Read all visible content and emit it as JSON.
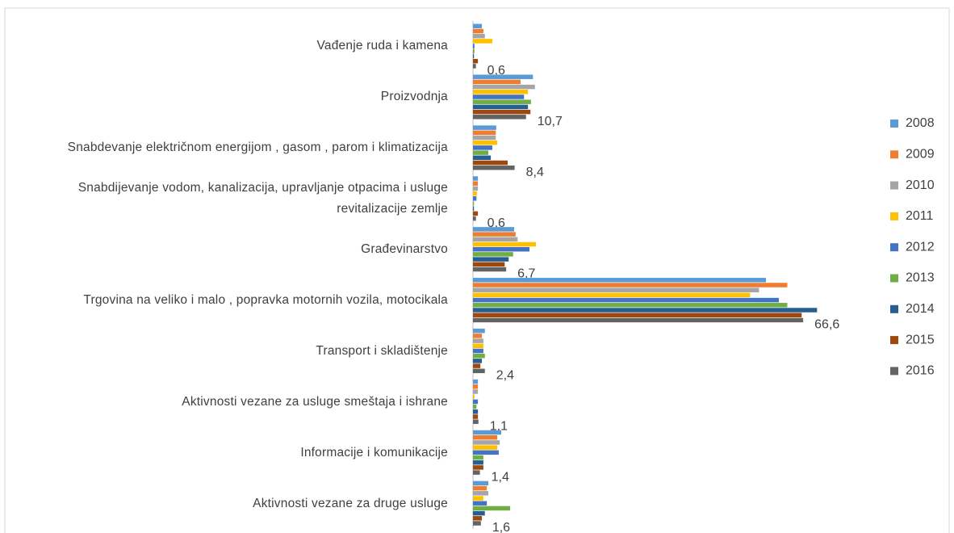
{
  "chart_data": {
    "type": "hbar",
    "categories": [
      "Vađenje ruda i kamena",
      "Proizvodnja",
      "Snabdevanje električnom energijom , gasom , parom i klimatizacija",
      "Snabdijevanje vodom, kanalizacija, upravljanje otpacima i usluge revitalizacije zemlje",
      "Građevinarstvo",
      "Trgovina na veliko i malo , popravka motornih vozila, motocikala",
      "Transport i skladištenje",
      "Aktivnosti vezane za usluge smeštaja i ishrane",
      "Informacije i komunikacije",
      "Aktivnosti vezane za druge usluge"
    ],
    "series": [
      {
        "name": "2008",
        "color": "#5b9bd5",
        "values": [
          1.8,
          12.1,
          4.7,
          1.0,
          8.3,
          59.1,
          2.4,
          1.0,
          5.7,
          3.1
        ]
      },
      {
        "name": "2009",
        "color": "#ed7d31",
        "values": [
          2.1,
          9.6,
          4.6,
          1.0,
          8.6,
          63.4,
          1.8,
          1.0,
          4.9,
          2.8
        ]
      },
      {
        "name": "2010",
        "color": "#a5a5a5",
        "values": [
          2.4,
          12.5,
          4.6,
          1.0,
          9.0,
          57.7,
          2.1,
          1.0,
          5.4,
          3.1
        ]
      },
      {
        "name": "2011",
        "color": "#ffc000",
        "values": [
          3.9,
          11.1,
          4.9,
          0.8,
          12.7,
          55.9,
          2.1,
          0.3,
          4.9,
          2.1
        ]
      },
      {
        "name": "2012",
        "color": "#4472c4",
        "values": [
          0.3,
          10.3,
          3.9,
          0.7,
          11.4,
          61.7,
          2.1,
          1.0,
          5.2,
          2.8
        ]
      },
      {
        "name": "2013",
        "color": "#70ad47",
        "values": [
          0.3,
          11.7,
          3.1,
          0.2,
          8.1,
          63.4,
          2.4,
          0.7,
          2.1,
          7.5
        ]
      },
      {
        "name": "2014",
        "color": "#255e91",
        "values": [
          0.2,
          11.1,
          3.6,
          0.2,
          7.2,
          69.4,
          1.8,
          1.0,
          2.1,
          2.4
        ]
      },
      {
        "name": "2015",
        "color": "#9e480e",
        "values": [
          1.0,
          11.6,
          7.0,
          1.0,
          6.4,
          66.3,
          1.5,
          1.0,
          2.1,
          1.8
        ]
      },
      {
        "name": "2016",
        "color": "#636363",
        "values": [
          0.6,
          10.7,
          8.4,
          0.6,
          6.7,
          66.6,
          2.4,
          1.1,
          1.4,
          1.6
        ],
        "value_labels": [
          "0,6",
          "10,7",
          "8,4",
          "0,6",
          "6,7",
          "66,6",
          "2,4",
          "1,1",
          "1,4",
          "1,6"
        ]
      }
    ],
    "xlim": [
      0,
      70
    ],
    "legend": "right"
  }
}
